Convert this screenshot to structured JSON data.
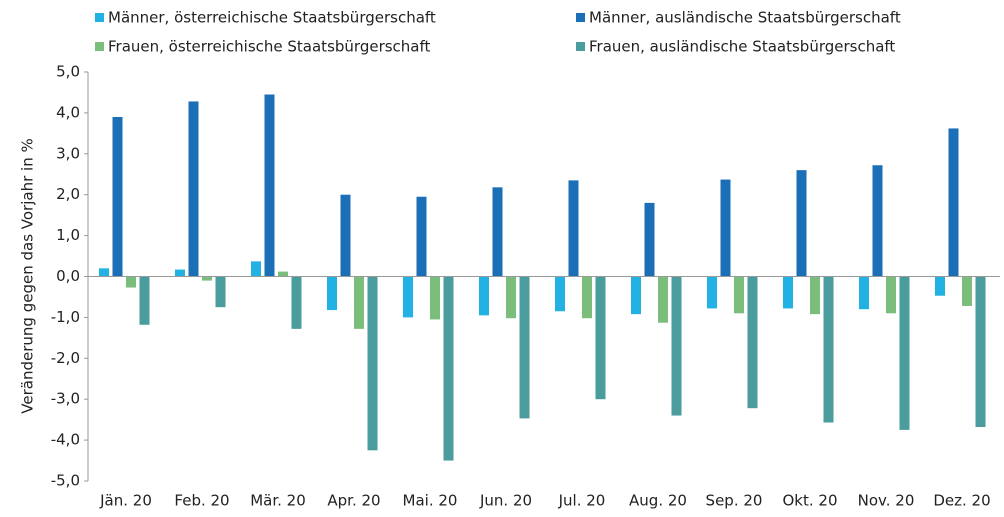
{
  "chart_data": {
    "type": "bar",
    "y_label": "Veränderung gegen das Vorjahr in %",
    "categories": [
      "Jän. 20",
      "Feb. 20",
      "Mär. 20",
      "Apr. 20",
      "Mai. 20",
      "Jun. 20",
      "Jul. 20",
      "Aug. 20",
      "Sep. 20",
      "Okt. 20",
      "Nov. 20",
      "Dez. 20"
    ],
    "series": [
      {
        "name": "Männer, österreichische Staatsbürgerschaft",
        "color": "#22b1e3",
        "values": [
          0.2,
          0.17,
          0.37,
          -0.82,
          -1.0,
          -0.95,
          -0.85,
          -0.92,
          -0.78,
          -0.78,
          -0.8,
          -0.47
        ]
      },
      {
        "name": "Männer, ausländische Staatsbürgerschaft",
        "color": "#1b6fb6",
        "values": [
          3.9,
          4.28,
          4.45,
          2.0,
          1.95,
          2.18,
          2.35,
          1.8,
          2.37,
          2.6,
          2.72,
          3.62
        ]
      },
      {
        "name": "Frauen, österreichische Staatsbürgerschaft",
        "color": "#7bbd7b",
        "values": [
          -0.27,
          -0.1,
          0.12,
          -1.28,
          -1.05,
          -1.02,
          -1.02,
          -1.13,
          -0.9,
          -0.92,
          -0.9,
          -0.72
        ]
      },
      {
        "name": "Frauen, ausländische Staatsbürgerschaft",
        "color": "#4a9c9d",
        "values": [
          -1.18,
          -0.75,
          -1.28,
          -4.25,
          -4.5,
          -3.47,
          -3.0,
          -3.4,
          -3.22,
          -3.57,
          -3.75,
          -3.68
        ]
      }
    ],
    "ylim": [
      -5,
      5
    ],
    "yticks": [
      {
        "value": -5,
        "label": "-5,0"
      },
      {
        "value": -4,
        "label": "-4,0"
      },
      {
        "value": -3,
        "label": "-3,0"
      },
      {
        "value": -2,
        "label": "-2,0"
      },
      {
        "value": -1,
        "label": "-1,0"
      },
      {
        "value": 0,
        "label": "0,0"
      },
      {
        "value": 1,
        "label": "1,0"
      },
      {
        "value": 2,
        "label": "2,0"
      },
      {
        "value": 3,
        "label": "3,0"
      },
      {
        "value": 4,
        "label": "4,0"
      },
      {
        "value": 5,
        "label": "5,0"
      }
    ],
    "grid": false
  }
}
